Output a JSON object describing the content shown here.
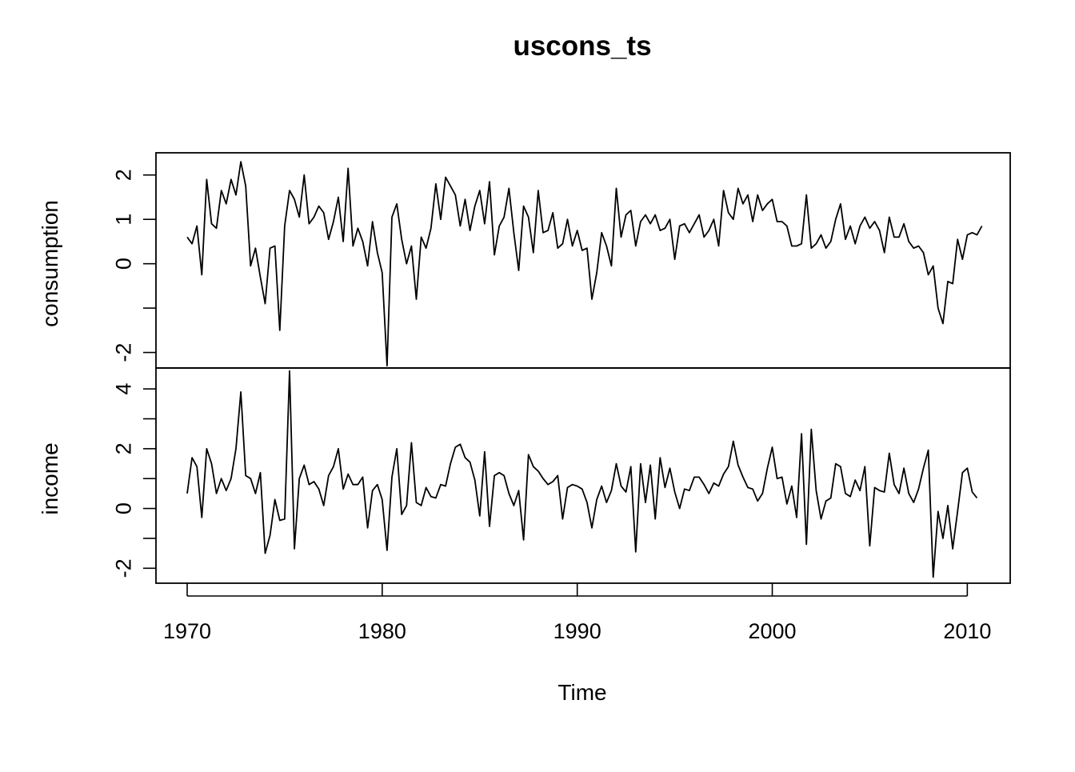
{
  "chart_data": {
    "type": "line",
    "title": "uscons_ts",
    "xlabel": "Time",
    "x_ticks": [
      1970,
      1980,
      1990,
      2000,
      2010
    ],
    "x_tick_labels": [
      "1970",
      "1980",
      "1990",
      "2000",
      "2010"
    ],
    "xlim": [
      1968.4,
      2012.2
    ],
    "start": 1970.0,
    "frequency": 4,
    "panels": [
      {
        "name": "consumption",
        "ylabel": "consumption",
        "ylim": [
          -2.35,
          2.5
        ],
        "y_ticks": [
          -2,
          -1,
          0,
          1,
          2
        ],
        "y_tick_labels": [
          "-2",
          "",
          "0",
          "1",
          "2"
        ],
        "values": [
          0.6,
          0.45,
          0.85,
          -0.25,
          1.9,
          0.9,
          0.8,
          1.65,
          1.35,
          1.9,
          1.55,
          2.3,
          1.75,
          -0.05,
          0.35,
          -0.3,
          -0.9,
          0.35,
          0.4,
          -1.5,
          0.85,
          1.65,
          1.45,
          1.05,
          2.0,
          0.9,
          1.05,
          1.3,
          1.15,
          0.55,
          0.95,
          1.5,
          0.5,
          2.15,
          0.4,
          0.8,
          0.5,
          -0.05,
          0.95,
          0.25,
          -0.2,
          -2.3,
          1.05,
          1.35,
          0.55,
          0.0,
          0.4,
          -0.8,
          0.6,
          0.35,
          0.8,
          1.8,
          1.0,
          1.95,
          1.75,
          1.55,
          0.85,
          1.45,
          0.75,
          1.3,
          1.65,
          0.9,
          1.85,
          0.2,
          0.85,
          1.05,
          1.7,
          0.7,
          -0.15,
          1.3,
          1.05,
          0.25,
          1.65,
          0.7,
          0.75,
          1.15,
          0.35,
          0.45,
          1.0,
          0.4,
          0.75,
          0.3,
          0.35,
          -0.8,
          -0.2,
          0.7,
          0.4,
          -0.05,
          1.7,
          0.6,
          1.1,
          1.2,
          0.4,
          0.95,
          1.1,
          0.9,
          1.1,
          0.75,
          0.8,
          1.0,
          0.1,
          0.85,
          0.9,
          0.7,
          0.9,
          1.1,
          0.6,
          0.75,
          1.0,
          0.4,
          1.65,
          1.15,
          1.0,
          1.7,
          1.35,
          1.55,
          0.95,
          1.55,
          1.2,
          1.35,
          1.45,
          0.95,
          0.95,
          0.85,
          0.4,
          0.4,
          0.45,
          1.55,
          0.35,
          0.45,
          0.65,
          0.35,
          0.5,
          1.0,
          1.35,
          0.55,
          0.85,
          0.45,
          0.85,
          1.05,
          0.8,
          0.95,
          0.75,
          0.25,
          1.05,
          0.6,
          0.6,
          0.9,
          0.5,
          0.35,
          0.4,
          0.25,
          -0.25,
          -0.05,
          -1.0,
          -1.35,
          -0.4,
          -0.45,
          0.55,
          0.1,
          0.65,
          0.7,
          0.65,
          0.85
        ]
      },
      {
        "name": "income",
        "ylabel": "income",
        "ylim": [
          -2.5,
          4.7
        ],
        "y_ticks": [
          -2,
          -1,
          0,
          1,
          2,
          3,
          4
        ],
        "y_tick_labels": [
          "-2",
          "",
          "0",
          "",
          "2",
          "",
          "4"
        ],
        "values": [
          0.5,
          1.7,
          1.4,
          -0.3,
          2.0,
          1.5,
          0.5,
          1.0,
          0.6,
          1.0,
          2.0,
          3.9,
          1.1,
          1.0,
          0.5,
          1.2,
          -1.5,
          -0.9,
          0.3,
          -0.4,
          -0.35,
          4.6,
          -1.35,
          1.0,
          1.45,
          0.8,
          0.9,
          0.65,
          0.1,
          1.1,
          1.4,
          2.0,
          0.65,
          1.15,
          0.8,
          0.8,
          1.05,
          -0.65,
          0.6,
          0.8,
          0.3,
          -1.4,
          1.05,
          2.0,
          -0.2,
          0.1,
          2.2,
          0.2,
          0.1,
          0.7,
          0.4,
          0.35,
          0.8,
          0.75,
          1.5,
          2.05,
          2.15,
          1.7,
          1.55,
          0.95,
          -0.25,
          1.9,
          -0.6,
          1.1,
          1.2,
          1.1,
          0.5,
          0.1,
          0.6,
          -1.05,
          1.8,
          1.4,
          1.25,
          1.0,
          0.8,
          0.9,
          1.1,
          -0.35,
          0.7,
          0.8,
          0.75,
          0.65,
          0.2,
          -0.65,
          0.3,
          0.75,
          0.2,
          0.6,
          1.5,
          0.75,
          0.55,
          1.4,
          -1.45,
          1.5,
          0.2,
          1.45,
          -0.35,
          1.7,
          0.7,
          1.35,
          0.55,
          0.0,
          0.65,
          0.6,
          1.05,
          1.05,
          0.8,
          0.5,
          0.85,
          0.75,
          1.15,
          1.4,
          2.25,
          1.45,
          1.05,
          0.7,
          0.65,
          0.25,
          0.5,
          1.35,
          2.05,
          1.0,
          1.05,
          0.15,
          0.75,
          -0.3,
          2.5,
          -1.2,
          2.65,
          0.6,
          -0.35,
          0.25,
          0.35,
          1.5,
          1.4,
          0.5,
          0.4,
          0.95,
          0.6,
          1.4,
          -1.25,
          0.7,
          0.6,
          0.55,
          1.85,
          0.8,
          0.5,
          1.35,
          0.5,
          0.2,
          0.65,
          1.35,
          1.95,
          -2.3,
          -0.1,
          -1.0,
          0.1,
          -1.35,
          -0.1,
          1.2,
          1.35,
          0.55,
          0.35
        ]
      }
    ]
  }
}
